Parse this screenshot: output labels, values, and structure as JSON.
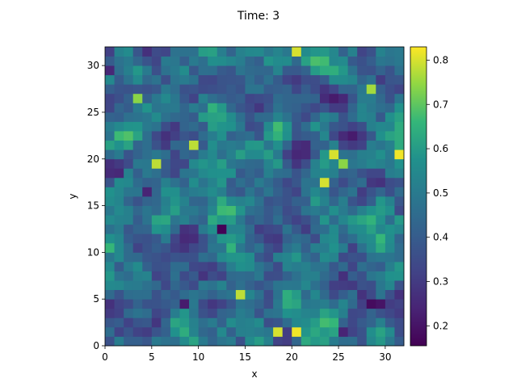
{
  "chart_data": {
    "type": "heatmap",
    "title": "Time: 3",
    "xlabel": "x",
    "ylabel": "y",
    "xlim": [
      0,
      32
    ],
    "ylim": [
      0,
      32
    ],
    "x_ticks": [
      0,
      5,
      10,
      15,
      20,
      25,
      30
    ],
    "y_ticks": [
      0,
      5,
      10,
      15,
      20,
      25,
      30
    ],
    "grid_size": [
      32,
      32
    ],
    "grid": false,
    "colormap": "viridis",
    "colorbar": {
      "range": [
        0.155,
        0.83
      ],
      "ticks": [
        0.2,
        0.3,
        0.4,
        0.5,
        0.6,
        0.7,
        0.8
      ],
      "placement": "right"
    },
    "random_seed": 3,
    "base_value": 0.46,
    "noise_amplitude": 0.18,
    "hotspots": [
      {
        "x": 20.5,
        "y": 1.5,
        "value": 0.82
      },
      {
        "x": 24.5,
        "y": 20.5,
        "value": 0.8
      },
      {
        "x": 23.5,
        "y": 17.5,
        "value": 0.8
      },
      {
        "x": 31.5,
        "y": 20.5,
        "value": 0.82
      },
      {
        "x": 9.5,
        "y": 21.5,
        "value": 0.78
      },
      {
        "x": 14.5,
        "y": 5.5,
        "value": 0.78
      },
      {
        "x": 3.5,
        "y": 26.5,
        "value": 0.74
      },
      {
        "x": 20.5,
        "y": 31.5,
        "value": 0.8
      },
      {
        "x": 28.5,
        "y": 27.5,
        "value": 0.76
      },
      {
        "x": 18.5,
        "y": 1.5,
        "value": 0.8
      },
      {
        "x": 5.5,
        "y": 19.5,
        "value": 0.78
      },
      {
        "x": 25.5,
        "y": 19.5,
        "value": 0.74
      }
    ],
    "coldspots": [
      {
        "x": 12.5,
        "y": 12.5,
        "value": 0.16
      },
      {
        "x": 28.5,
        "y": 4.5,
        "value": 0.18
      },
      {
        "x": 29.5,
        "y": 4.5,
        "value": 0.2
      },
      {
        "x": 1.5,
        "y": 18.5,
        "value": 0.25
      },
      {
        "x": 8.5,
        "y": 4.5,
        "value": 0.22
      },
      {
        "x": 0.5,
        "y": 29.5,
        "value": 0.25
      },
      {
        "x": 4.5,
        "y": 16.5,
        "value": 0.24
      },
      {
        "x": 25.5,
        "y": 1.5,
        "value": 0.24
      }
    ]
  }
}
